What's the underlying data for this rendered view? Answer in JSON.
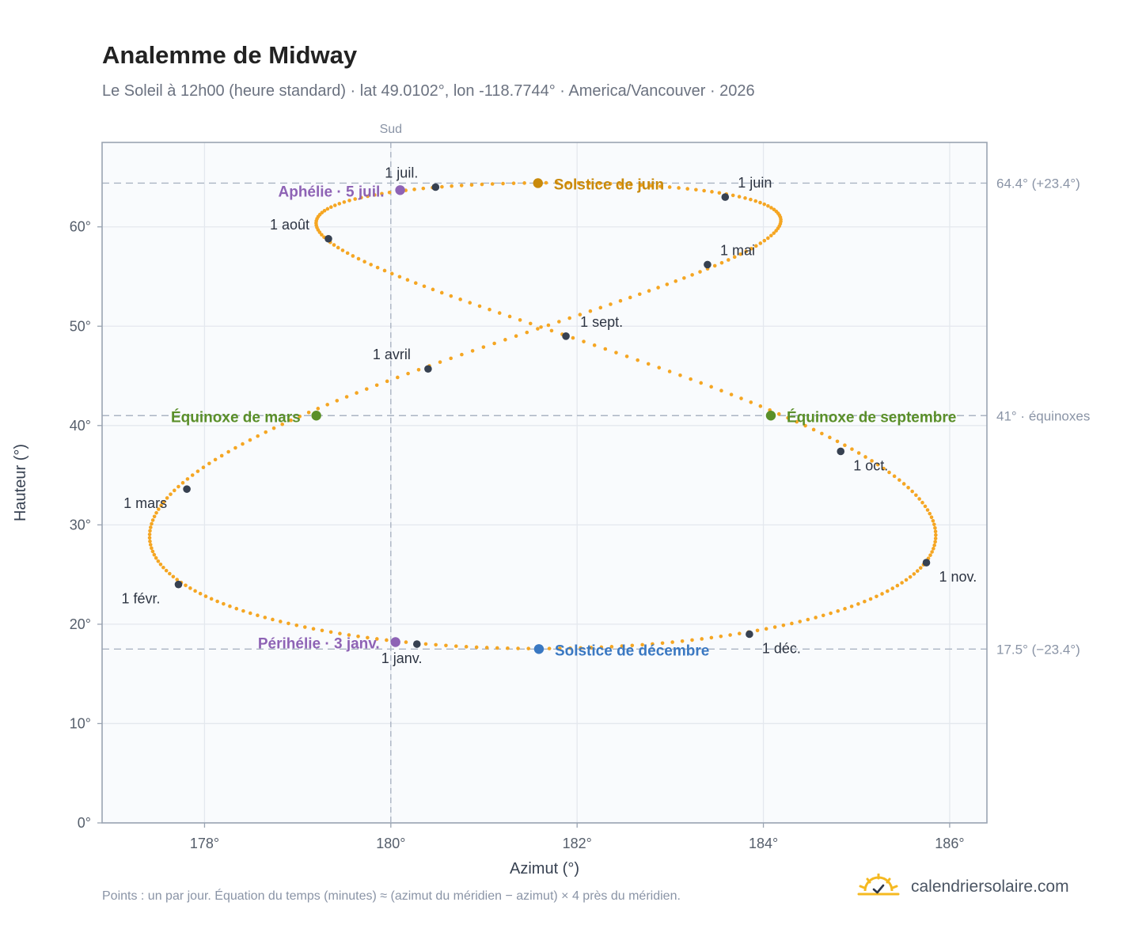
{
  "header": {
    "title": "Analemme de Midway",
    "subtitle": "Le Soleil à 12h00 (heure standard) · lat 49.0102°, lon -118.7744° · America/Vancouver · 2026"
  },
  "footer": {
    "note": "Points : un par jour. Équation du temps (minutes) ≈ (azimut du méridien − azimut) × 4 près du méridien.",
    "brand": "calendriersolaire.com",
    "brand_icon": "sun-logo-icon"
  },
  "colors": {
    "curve": "#f5a623",
    "month_marker": "#374151",
    "june_solstice": "#c98a0b",
    "december_solstice": "#3a78c2",
    "equinox": "#5a8f29",
    "apsis": "#8e63b5",
    "reference_line": "#aab4c3",
    "grid": "#e4e8ee",
    "plot_bg": "#f9fbfd"
  },
  "chart_data": {
    "type": "scatter",
    "title": "Analemme de Midway",
    "xlabel": "Azimut (°)",
    "ylabel": "Hauteur (°)",
    "xlim": [
      176.9,
      186.4
    ],
    "ylim": [
      0,
      68.5
    ],
    "xticks": [
      178,
      180,
      182,
      184,
      186
    ],
    "yticks": [
      0,
      10,
      20,
      30,
      40,
      50,
      60
    ],
    "tick_suffix": "°",
    "grid": true,
    "south_line": {
      "x": 180,
      "label": "Sud"
    },
    "reference_lines": [
      {
        "y": 64.4,
        "label": "64.4° (+23.4°)"
      },
      {
        "y": 41.0,
        "label": "41° · équinoxes"
      },
      {
        "y": 17.5,
        "label": "17.5° (−23.4°)"
      }
    ],
    "analemma": {
      "description_points": "daily",
      "latitude": 49.0102,
      "longitude": -118.7744,
      "utc_offset_hours": -8,
      "clock_time": "12:00",
      "year": 2026
    },
    "month_markers": [
      {
        "label": "1 janv.",
        "azimuth": 180.28,
        "altitude": 18.0
      },
      {
        "label": "1 févr.",
        "azimuth": 177.72,
        "altitude": 24.0
      },
      {
        "label": "1 mars",
        "azimuth": 177.81,
        "altitude": 33.6
      },
      {
        "label": "1 avril",
        "azimuth": 180.4,
        "altitude": 45.7
      },
      {
        "label": "1 mai",
        "azimuth": 183.4,
        "altitude": 56.2
      },
      {
        "label": "1 juin",
        "azimuth": 183.59,
        "altitude": 63.0
      },
      {
        "label": "1 juil.",
        "azimuth": 180.48,
        "altitude": 64.0
      },
      {
        "label": "1 août",
        "azimuth": 179.33,
        "altitude": 58.8
      },
      {
        "label": "1 sept.",
        "azimuth": 181.88,
        "altitude": 49.0
      },
      {
        "label": "1 oct.",
        "azimuth": 184.83,
        "altitude": 37.4
      },
      {
        "label": "1 nov.",
        "azimuth": 185.75,
        "altitude": 26.2
      },
      {
        "label": "1 déc.",
        "azimuth": 183.85,
        "altitude": 19.0
      }
    ],
    "events": [
      {
        "label": "Solstice de juin",
        "azimuth": 181.58,
        "altitude": 64.4,
        "kind": "june_solstice"
      },
      {
        "label": "Solstice de décembre",
        "azimuth": 181.59,
        "altitude": 17.5,
        "kind": "december_solstice"
      },
      {
        "label": "Équinoxe de mars",
        "azimuth": 179.2,
        "altitude": 41.0,
        "kind": "equinox"
      },
      {
        "label": "Équinoxe de septembre",
        "azimuth": 184.08,
        "altitude": 41.0,
        "kind": "equinox"
      },
      {
        "label": "Aphélie · 5 juil.",
        "azimuth": 180.1,
        "altitude": 63.7,
        "kind": "apsis"
      },
      {
        "label": "Périhélie · 3 janv.",
        "azimuth": 180.05,
        "altitude": 18.2,
        "kind": "apsis"
      }
    ]
  }
}
